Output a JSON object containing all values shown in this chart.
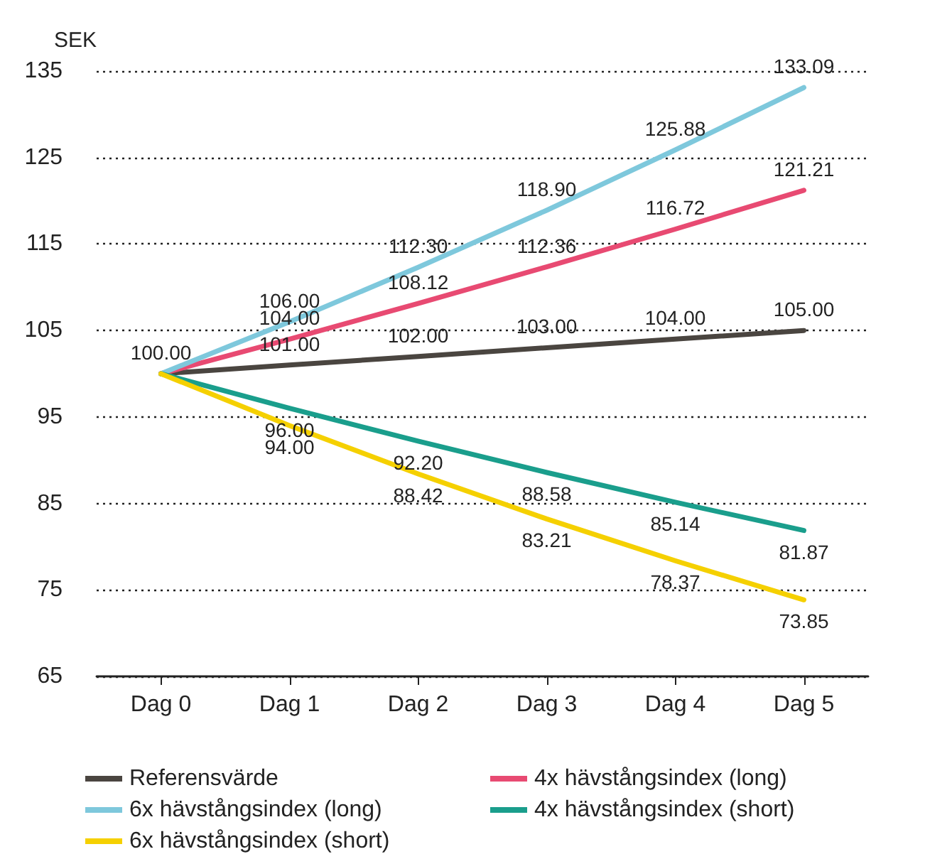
{
  "chart_data": {
    "type": "line",
    "ylabel": "SEK",
    "categories": [
      "Dag 0",
      "Dag 1",
      "Dag 2",
      "Dag 3",
      "Dag 4",
      "Dag 5"
    ],
    "ylim": [
      65,
      135
    ],
    "yticks": [
      65,
      75,
      85,
      95,
      105,
      115,
      125,
      135
    ],
    "grid": "y",
    "legend": "bottom",
    "marker": "none",
    "line_style": "solid",
    "series": [
      {
        "name": "Referensvärde",
        "color": "#4a4540",
        "values": [
          100,
          101,
          102,
          103,
          104,
          105
        ],
        "value_labels": [
          "100.00",
          "101.00",
          "102.00",
          "103.00",
          "104.00",
          "105.00"
        ]
      },
      {
        "name": "4x hävstångsindex (long)",
        "color": "#e84a72",
        "values": [
          100,
          104,
          108.12,
          112.36,
          116.72,
          121.21
        ],
        "value_labels": [
          null,
          "104.00",
          "108.12",
          "112.36",
          "116.72",
          "121.21"
        ]
      },
      {
        "name": "6x hävstångsindex (long)",
        "color": "#7ec8dc",
        "values": [
          100,
          106,
          112.3,
          118.9,
          125.88,
          133.09
        ],
        "value_labels": [
          null,
          "106.00",
          "112.30",
          "118.90",
          "125.88",
          "133.09"
        ]
      },
      {
        "name": "4x hävstångsindex (short)",
        "color": "#1a9e8c",
        "values": [
          100,
          96,
          92.2,
          88.58,
          85.14,
          81.87
        ],
        "value_labels": [
          null,
          "96.00",
          "92.20",
          "88.58",
          "85.14",
          "81.87"
        ]
      },
      {
        "name": "6x hävstångsindex (short)",
        "color": "#f5d000",
        "values": [
          100,
          94,
          88.42,
          83.21,
          78.37,
          73.85
        ],
        "value_labels": [
          null,
          "94.00",
          "88.42",
          "83.21",
          "78.37",
          "73.85"
        ]
      }
    ]
  }
}
